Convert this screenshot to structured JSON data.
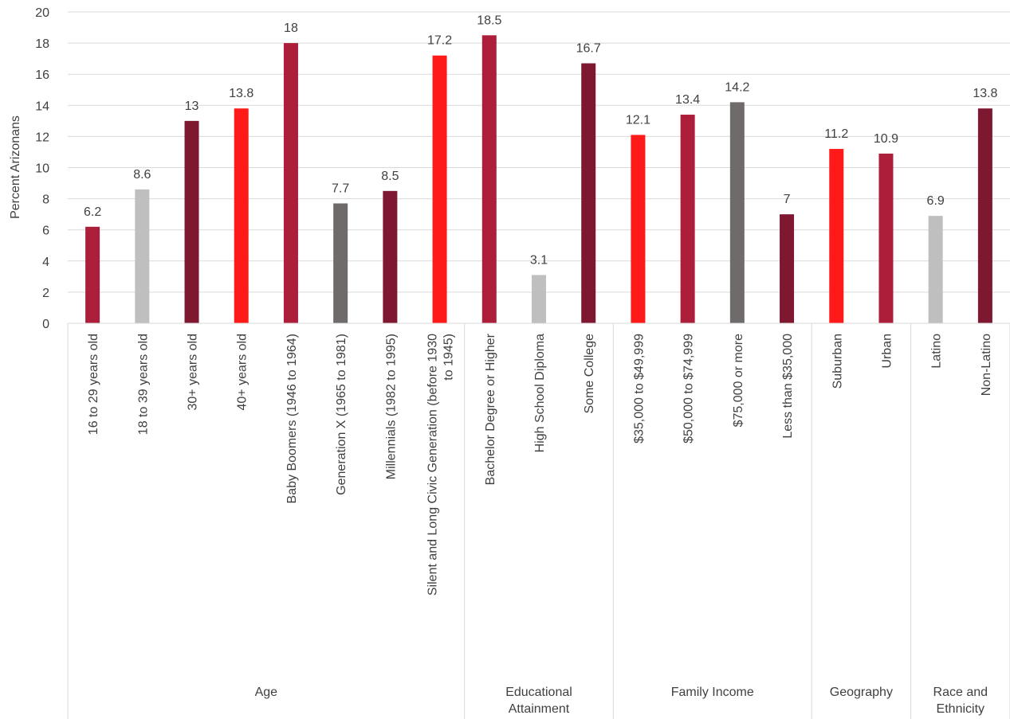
{
  "chart_data": {
    "type": "bar",
    "ylabel": "Percent Arizonans",
    "ylim": [
      0,
      20
    ],
    "yticks": [
      0,
      2,
      4,
      6,
      8,
      10,
      12,
      14,
      16,
      18,
      20
    ],
    "grid": true,
    "legend": "none",
    "categories": [
      "16 to 29 years old",
      "18 to 39 years old",
      "30+ years old",
      "40+ years old",
      "Baby Boomers (1946 to 1964)",
      "Generation X (1965 to 1981)",
      "Millennials (1982 to 1995)",
      "Silent and Long Civic Generation (before 1930 to 1945)",
      "Bachelor Degree or Higher",
      "High School Diploma",
      "Some College",
      "$35,000 to $49,999",
      "$50,000 to $74,999",
      "$75,000 or more",
      "Less than $35,000",
      "Suburban",
      "Urban",
      "Latino",
      "Non-Latino"
    ],
    "category_label_lines": [
      [
        "16 to 29 years old"
      ],
      [
        "18 to 39 years old"
      ],
      [
        "30+ years old"
      ],
      [
        "40+ years old"
      ],
      [
        "Baby Boomers (1946 to 1964)"
      ],
      [
        "Generation X (1965 to 1981)"
      ],
      [
        "Millennials (1982 to 1995)"
      ],
      [
        "Silent and Long Civic Generation (before 1930",
        "to 1945)"
      ],
      [
        "Bachelor Degree or Higher"
      ],
      [
        "High School Diploma"
      ],
      [
        "Some College"
      ],
      [
        "$35,000 to $49,999"
      ],
      [
        "$50,000 to $74,999"
      ],
      [
        "$75,000 or more"
      ],
      [
        "Less than $35,000"
      ],
      [
        "Suburban"
      ],
      [
        "Urban"
      ],
      [
        "Latino"
      ],
      [
        "Non-Latino"
      ]
    ],
    "values": [
      6.2,
      8.6,
      13,
      13.8,
      18,
      7.7,
      8.5,
      17.2,
      18.5,
      3.1,
      16.7,
      12.1,
      13.4,
      14.2,
      7,
      11.2,
      10.9,
      6.9,
      13.8
    ],
    "value_labels": [
      "6.2",
      "8.6",
      "13",
      "13.8",
      "18",
      "7.7",
      "8.5",
      "17.2",
      "18.5",
      "3.1",
      "16.7",
      "12.1",
      "13.4",
      "14.2",
      "7",
      "11.2",
      "10.9",
      "6.9",
      "13.8"
    ],
    "bar_colors": [
      "#AC1E3A",
      "#BFBFBF",
      "#7E1830",
      "#FF1A1A",
      "#AC1E3A",
      "#706B6B",
      "#7E1830",
      "#FF1A1A",
      "#AC1E3A",
      "#BFBFBF",
      "#7E1830",
      "#FF1A1A",
      "#AC1E3A",
      "#706B6B",
      "#7E1830",
      "#FF1A1A",
      "#AC1E3A",
      "#BFBFBF",
      "#7E1830"
    ],
    "groups": [
      {
        "label_lines": [
          "Age"
        ],
        "count": 8
      },
      {
        "label_lines": [
          "Educational",
          "Attainment"
        ],
        "count": 3
      },
      {
        "label_lines": [
          "Family Income"
        ],
        "count": 4
      },
      {
        "label_lines": [
          "Geography"
        ],
        "count": 2
      },
      {
        "label_lines": [
          "Race and",
          "Ethnicity"
        ],
        "count": 2
      }
    ]
  }
}
